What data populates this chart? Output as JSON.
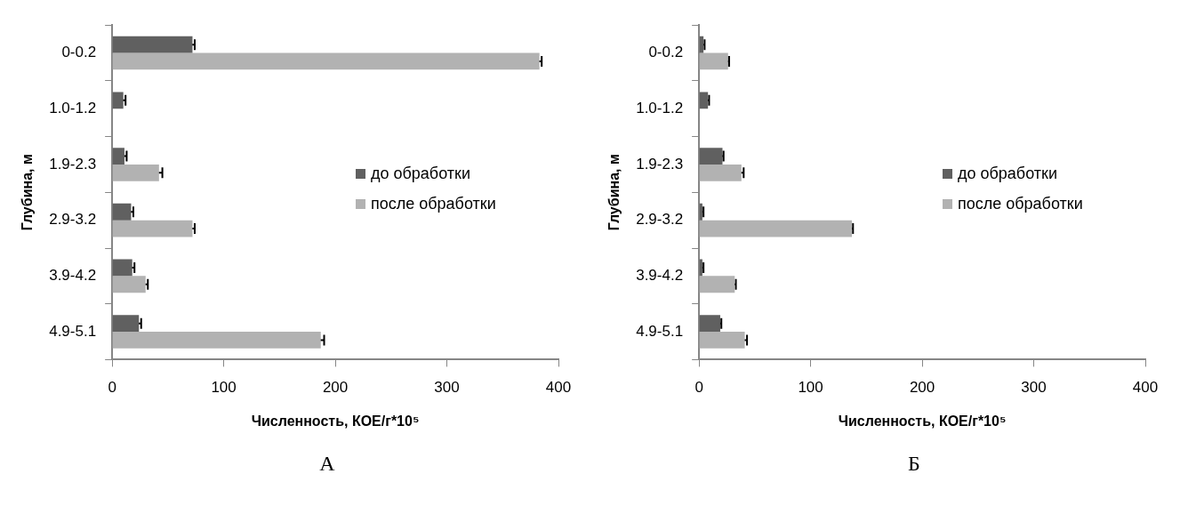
{
  "chart_data": [
    {
      "type": "bar",
      "orientation": "horizontal",
      "xlabel": "Численность, КОЕ/г*10⁵",
      "ylabel": "Глубина, м",
      "categories": [
        "0-0.2",
        "1.0-1.2",
        "1.9-2.3",
        "2.9-3.2",
        "3.9-4.2",
        "4.9-5.1"
      ],
      "xlim": [
        0,
        400
      ],
      "xticks": [
        0,
        100,
        200,
        300,
        400
      ],
      "grid": false,
      "legend": "right",
      "annotations": [
        "А"
      ],
      "series": [
        {
          "name": "до обработки",
          "color": "#606060",
          "values": [
            72,
            10,
            11,
            17,
            18,
            24
          ],
          "errors": [
            2,
            2,
            2,
            2,
            2,
            2
          ]
        },
        {
          "name": "после обработки",
          "color": "#b2b2b2",
          "values": [
            383,
            null,
            42,
            72,
            30,
            187
          ],
          "errors": [
            2,
            null,
            3,
            2,
            2,
            3
          ]
        }
      ]
    },
    {
      "type": "bar",
      "orientation": "horizontal",
      "xlabel": "Численность, КОЕ/г*10⁵",
      "ylabel": "Глубина, м",
      "categories": [
        "0-0.2",
        "1.0-1.2",
        "1.9-2.3",
        "2.9-3.2",
        "3.9-4.2",
        "4.9-5.1"
      ],
      "xlim": [
        0,
        400
      ],
      "xticks": [
        0,
        100,
        200,
        300,
        400
      ],
      "grid": false,
      "legend": "right",
      "annotations": [
        "Б"
      ],
      "series": [
        {
          "name": "до обработки",
          "color": "#606060",
          "values": [
            4,
            8,
            21,
            3,
            3,
            19
          ],
          "errors": [
            1,
            1,
            1,
            1,
            1,
            1
          ]
        },
        {
          "name": "после обработки",
          "color": "#b2b2b2",
          "values": [
            26,
            null,
            38,
            137,
            32,
            41
          ],
          "errors": [
            1,
            null,
            2,
            1,
            1,
            2
          ]
        }
      ]
    }
  ]
}
